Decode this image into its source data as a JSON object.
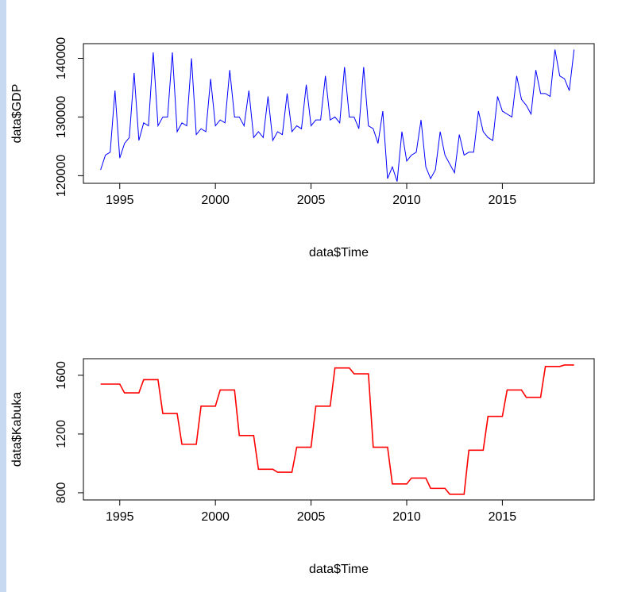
{
  "chart_data": [
    {
      "type": "line",
      "x_label": "data$Time",
      "y_label": "data$GDP",
      "color": "#0000ff",
      "x": [
        1994,
        1994.25,
        1994.5,
        1994.75,
        1995,
        1995.25,
        1995.5,
        1995.75,
        1996,
        1996.25,
        1996.5,
        1996.75,
        1997,
        1997.25,
        1997.5,
        1997.75,
        1998,
        1998.25,
        1998.5,
        1998.75,
        1999,
        1999.25,
        1999.5,
        1999.75,
        2000,
        2000.25,
        2000.5,
        2000.75,
        2001,
        2001.25,
        2001.5,
        2001.75,
        2002,
        2002.25,
        2002.5,
        2002.75,
        2003,
        2003.25,
        2003.5,
        2003.75,
        2004,
        2004.25,
        2004.5,
        2004.75,
        2005,
        2005.25,
        2005.5,
        2005.75,
        2006,
        2006.25,
        2006.5,
        2006.75,
        2007,
        2007.25,
        2007.5,
        2007.75,
        2008,
        2008.25,
        2008.5,
        2008.75,
        2009,
        2009.25,
        2009.5,
        2009.75,
        2010,
        2010.25,
        2010.5,
        2010.75,
        2011,
        2011.25,
        2011.5,
        2011.75,
        2012,
        2012.25,
        2012.5,
        2012.75,
        2013,
        2013.25,
        2013.5,
        2013.75,
        2014,
        2014.25,
        2014.5,
        2014.75,
        2015,
        2015.25,
        2015.5,
        2015.75,
        2016,
        2016.25,
        2016.5,
        2016.75,
        2017,
        2017.25,
        2017.5,
        2017.75,
        2018,
        2018.25,
        2018.5,
        2018.75
      ],
      "values": [
        121000,
        123500,
        124000,
        134500,
        123000,
        125500,
        126500,
        137500,
        126000,
        129000,
        128500,
        141000,
        128500,
        130000,
        130000,
        141000,
        127500,
        129000,
        128500,
        140000,
        127000,
        128000,
        127500,
        136500,
        128500,
        129500,
        129000,
        138000,
        130000,
        130000,
        128500,
        134500,
        126500,
        127500,
        126500,
        133500,
        126000,
        127500,
        127000,
        134000,
        127500,
        128500,
        128000,
        135500,
        128500,
        129500,
        129500,
        137000,
        129500,
        130000,
        129000,
        138500,
        130000,
        130000,
        128000,
        138500,
        128500,
        128000,
        125500,
        131000,
        119500,
        121500,
        119000,
        127500,
        122500,
        123500,
        124000,
        129500,
        121500,
        119500,
        121000,
        127500,
        123500,
        122000,
        120500,
        127000,
        123500,
        124000,
        124000,
        131000,
        127500,
        126500,
        126000,
        133500,
        131000,
        130500,
        130000,
        137000,
        133000,
        132000,
        130500,
        138000,
        134000,
        134000,
        133500,
        141500,
        137000,
        136500,
        134500,
        141500
      ],
      "xlim": [
        1993.1,
        2019.8
      ],
      "xticks": [
        1995,
        2000,
        2005,
        2010,
        2015
      ],
      "ylim": [
        118700,
        142500
      ],
      "yticks": [
        120000,
        130000,
        140000
      ]
    },
    {
      "type": "line",
      "x_label": "data$Time",
      "y_label": "data$Kabuka",
      "color": "#ff0000",
      "x": [
        1994,
        1994.25,
        1994.5,
        1994.75,
        1995,
        1995.25,
        1995.5,
        1995.75,
        1996,
        1996.25,
        1996.5,
        1996.75,
        1997,
        1997.25,
        1997.5,
        1997.75,
        1998,
        1998.25,
        1998.5,
        1998.75,
        1999,
        1999.25,
        1999.5,
        1999.75,
        2000,
        2000.25,
        2000.5,
        2000.75,
        2001,
        2001.25,
        2001.5,
        2001.75,
        2002,
        2002.25,
        2002.5,
        2002.75,
        2003,
        2003.25,
        2003.5,
        2003.75,
        2004,
        2004.25,
        2004.5,
        2004.75,
        2005,
        2005.25,
        2005.5,
        2005.75,
        2006,
        2006.25,
        2006.5,
        2006.75,
        2007,
        2007.25,
        2007.5,
        2007.75,
        2008,
        2008.25,
        2008.5,
        2008.75,
        2009,
        2009.25,
        2009.5,
        2009.75,
        2010,
        2010.25,
        2010.5,
        2010.75,
        2011,
        2011.25,
        2011.5,
        2011.75,
        2012,
        2012.25,
        2012.5,
        2012.75,
        2013,
        2013.25,
        2013.5,
        2013.75,
        2014,
        2014.25,
        2014.5,
        2014.75,
        2015,
        2015.25,
        2015.5,
        2015.75,
        2016,
        2016.25,
        2016.5,
        2016.75,
        2017,
        2017.25,
        2017.5,
        2017.75,
        2018,
        2018.25,
        2018.5,
        2018.75
      ],
      "values": [
        1540,
        1540,
        1540,
        1540,
        1540,
        1480,
        1480,
        1480,
        1480,
        1570,
        1570,
        1570,
        1570,
        1340,
        1340,
        1340,
        1340,
        1130,
        1130,
        1130,
        1130,
        1390,
        1390,
        1390,
        1390,
        1500,
        1500,
        1500,
        1500,
        1190,
        1190,
        1190,
        1190,
        960,
        960,
        960,
        960,
        940,
        940,
        940,
        940,
        1110,
        1110,
        1110,
        1110,
        1390,
        1390,
        1390,
        1390,
        1650,
        1650,
        1650,
        1650,
        1610,
        1610,
        1610,
        1610,
        1110,
        1110,
        1110,
        1110,
        860,
        860,
        860,
        860,
        900,
        900,
        900,
        900,
        830,
        830,
        830,
        830,
        790,
        790,
        790,
        790,
        1090,
        1090,
        1090,
        1090,
        1320,
        1320,
        1320,
        1320,
        1500,
        1500,
        1500,
        1500,
        1450,
        1450,
        1450,
        1450,
        1660,
        1660,
        1660,
        1660,
        1670,
        1670,
        1670
      ],
      "xlim": [
        1993.1,
        2019.8
      ],
      "xticks": [
        1995,
        2000,
        2005,
        2010,
        2015
      ],
      "ylim": [
        751,
        1713
      ],
      "yticks": [
        800,
        1200,
        1600
      ]
    }
  ]
}
